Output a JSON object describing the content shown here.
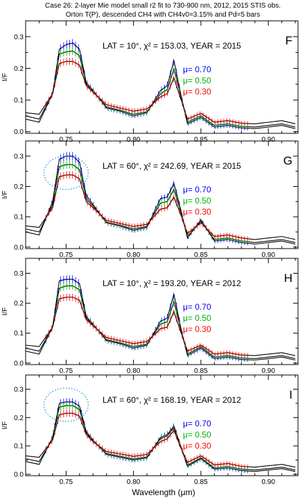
{
  "figure": {
    "title_lines": [
      "Case 26: 2-layer Mie model small r2 fit to 730-900 nm, 2012, 2015 STIS obs.",
      "Orton T(P), descended CH4 with CH4v0=3.15% and Pd=5 bars"
    ],
    "xlabel": "Wavelength (μm)",
    "colors": {
      "mu_070": "#0000ff",
      "mu_050": "#00b000",
      "mu_030": "#ff0000",
      "model": "#000000",
      "circle": "#2a9fd6"
    }
  },
  "chart_data": [
    {
      "type": "line",
      "panel_letter": "F",
      "annotation": "LAT = 10°, χ² = 153.03, YEAR = 2015",
      "ylabel": "I/F",
      "xlim": [
        0.72,
        0.922
      ],
      "ylim": [
        -0.005,
        0.35
      ],
      "x_ticks": [
        "0.75",
        "0.80",
        "0.85",
        "0.90"
      ],
      "y_ticks": [
        "0.0",
        "0.1",
        "0.2",
        "0.3"
      ],
      "legend": [
        "μ=  0.70",
        "μ=  0.50",
        "μ=  0.30"
      ],
      "legend_position": "right",
      "circle": false,
      "series": [
        {
          "name": "μ=  0.70",
          "color": "#0000ff",
          "x": [
            0.72,
            0.73,
            0.74,
            0.745,
            0.75,
            0.755,
            0.76,
            0.765,
            0.77,
            0.78,
            0.79,
            0.8,
            0.81,
            0.82,
            0.825,
            0.83,
            0.835,
            0.84,
            0.85,
            0.86,
            0.87,
            0.88,
            0.89,
            0.9,
            0.91,
            0.92
          ],
          "values": [
            0.04,
            0.03,
            0.12,
            0.26,
            0.275,
            0.28,
            0.26,
            0.155,
            0.13,
            0.075,
            0.065,
            0.05,
            0.06,
            0.13,
            0.145,
            0.225,
            0.12,
            0.025,
            0.045,
            0.015,
            0.02,
            0.012,
            0.01,
            0.015,
            0.02,
            0.01
          ]
        },
        {
          "name": "μ=  0.50",
          "color": "#00b000",
          "x": [
            0.72,
            0.73,
            0.74,
            0.745,
            0.75,
            0.755,
            0.76,
            0.765,
            0.77,
            0.78,
            0.79,
            0.8,
            0.81,
            0.82,
            0.825,
            0.83,
            0.835,
            0.84,
            0.85,
            0.86,
            0.87,
            0.88,
            0.89,
            0.9,
            0.91,
            0.92
          ],
          "values": [
            0.05,
            0.04,
            0.12,
            0.245,
            0.252,
            0.255,
            0.24,
            0.15,
            0.128,
            0.078,
            0.068,
            0.055,
            0.063,
            0.12,
            0.133,
            0.198,
            0.115,
            0.03,
            0.05,
            0.02,
            0.025,
            0.017,
            0.015,
            0.02,
            0.025,
            0.015
          ]
        },
        {
          "name": "μ=  0.30",
          "color": "#ff0000",
          "x": [
            0.72,
            0.73,
            0.74,
            0.745,
            0.75,
            0.755,
            0.76,
            0.765,
            0.77,
            0.78,
            0.79,
            0.8,
            0.81,
            0.82,
            0.825,
            0.83,
            0.835,
            0.84,
            0.85,
            0.86,
            0.87,
            0.88,
            0.89,
            0.9,
            0.91,
            0.92
          ],
          "values": [
            0.06,
            0.055,
            0.12,
            0.215,
            0.222,
            0.222,
            0.21,
            0.145,
            0.125,
            0.085,
            0.075,
            0.065,
            0.072,
            0.11,
            0.12,
            0.17,
            0.105,
            0.04,
            0.058,
            0.03,
            0.035,
            0.027,
            0.025,
            0.03,
            0.035,
            0.025
          ]
        }
      ]
    },
    {
      "type": "line",
      "panel_letter": "G",
      "annotation": "LAT = 60°, χ² = 242.69, YEAR = 2015",
      "ylabel": "I/F",
      "xlim": [
        0.72,
        0.922
      ],
      "ylim": [
        -0.005,
        0.35
      ],
      "x_ticks": [
        "0.75",
        "0.80",
        "0.85",
        "0.90"
      ],
      "y_ticks": [
        "0.0",
        "0.1",
        "0.2",
        "0.3"
      ],
      "legend": [
        "μ=  0.70",
        "μ=  0.50",
        "μ=  0.30"
      ],
      "legend_position": "right",
      "circle": true,
      "series": [
        {
          "name": "μ=  0.70",
          "color": "#0000ff",
          "x": [
            0.72,
            0.73,
            0.74,
            0.745,
            0.75,
            0.755,
            0.76,
            0.765,
            0.77,
            0.78,
            0.79,
            0.8,
            0.81,
            0.82,
            0.825,
            0.83,
            0.835,
            0.84,
            0.85,
            0.86,
            0.87,
            0.88,
            0.89,
            0.9,
            0.91,
            0.92
          ],
          "values": [
            0.05,
            0.04,
            0.15,
            0.29,
            0.3,
            0.3,
            0.28,
            0.17,
            0.14,
            0.08,
            0.07,
            0.055,
            0.065,
            0.16,
            0.165,
            0.21,
            0.125,
            0.03,
            0.09,
            0.02,
            0.025,
            0.015,
            0.01,
            0.015,
            0.02,
            0.01
          ]
        },
        {
          "name": "μ=  0.50",
          "color": "#00b000",
          "x": [
            0.72,
            0.73,
            0.74,
            0.745,
            0.75,
            0.755,
            0.76,
            0.765,
            0.77,
            0.78,
            0.79,
            0.8,
            0.81,
            0.82,
            0.825,
            0.83,
            0.835,
            0.84,
            0.85,
            0.86,
            0.87,
            0.88,
            0.89,
            0.9,
            0.91,
            0.92
          ],
          "values": [
            0.06,
            0.05,
            0.14,
            0.265,
            0.272,
            0.272,
            0.255,
            0.16,
            0.135,
            0.082,
            0.072,
            0.06,
            0.068,
            0.145,
            0.15,
            0.19,
            0.118,
            0.035,
            0.085,
            0.025,
            0.03,
            0.02,
            0.015,
            0.02,
            0.025,
            0.015
          ]
        },
        {
          "name": "μ=  0.30",
          "color": "#ff0000",
          "x": [
            0.72,
            0.73,
            0.74,
            0.745,
            0.75,
            0.755,
            0.76,
            0.765,
            0.77,
            0.78,
            0.79,
            0.8,
            0.81,
            0.82,
            0.825,
            0.83,
            0.835,
            0.84,
            0.85,
            0.86,
            0.87,
            0.88,
            0.89,
            0.9,
            0.91,
            0.92
          ],
          "values": [
            0.07,
            0.065,
            0.13,
            0.232,
            0.238,
            0.238,
            0.225,
            0.15,
            0.13,
            0.088,
            0.078,
            0.068,
            0.075,
            0.125,
            0.13,
            0.165,
            0.108,
            0.045,
            0.08,
            0.035,
            0.04,
            0.03,
            0.025,
            0.03,
            0.035,
            0.025
          ]
        }
      ]
    },
    {
      "type": "line",
      "panel_letter": "H",
      "annotation": "LAT = 10°, χ² = 193.20, YEAR = 2012",
      "ylabel": "I/F",
      "xlim": [
        0.72,
        0.922
      ],
      "ylim": [
        -0.005,
        0.35
      ],
      "x_ticks": [
        "0.75",
        "0.80",
        "0.85",
        "0.90"
      ],
      "y_ticks": [
        "0.0",
        "0.1",
        "0.2",
        "0.3"
      ],
      "legend": [
        "μ=  0.70",
        "μ=  0.50",
        "μ=  0.30"
      ],
      "legend_position": "right",
      "circle": false,
      "series": [
        {
          "name": "μ=  0.70",
          "color": "#0000ff",
          "x": [
            0.72,
            0.73,
            0.74,
            0.745,
            0.75,
            0.755,
            0.76,
            0.765,
            0.77,
            0.78,
            0.79,
            0.8,
            0.81,
            0.82,
            0.825,
            0.83,
            0.835,
            0.84,
            0.85,
            0.86,
            0.87,
            0.88,
            0.89,
            0.9,
            0.91,
            0.92
          ],
          "values": [
            0.04,
            0.03,
            0.12,
            0.275,
            0.28,
            0.28,
            0.265,
            0.155,
            0.13,
            0.075,
            0.065,
            0.05,
            0.06,
            0.14,
            0.15,
            0.23,
            0.12,
            0.025,
            0.05,
            0.015,
            0.02,
            0.012,
            0.01,
            0.015,
            0.02,
            0.01
          ]
        },
        {
          "name": "μ=  0.50",
          "color": "#00b000",
          "x": [
            0.72,
            0.73,
            0.74,
            0.745,
            0.75,
            0.755,
            0.76,
            0.765,
            0.77,
            0.78,
            0.79,
            0.8,
            0.81,
            0.82,
            0.825,
            0.83,
            0.835,
            0.84,
            0.85,
            0.86,
            0.87,
            0.88,
            0.89,
            0.9,
            0.91,
            0.92
          ],
          "values": [
            0.05,
            0.04,
            0.12,
            0.25,
            0.258,
            0.258,
            0.245,
            0.15,
            0.128,
            0.078,
            0.068,
            0.055,
            0.063,
            0.13,
            0.138,
            0.205,
            0.115,
            0.03,
            0.055,
            0.02,
            0.025,
            0.017,
            0.015,
            0.02,
            0.025,
            0.015
          ]
        },
        {
          "name": "μ=  0.30",
          "color": "#ff0000",
          "x": [
            0.72,
            0.73,
            0.74,
            0.745,
            0.75,
            0.755,
            0.76,
            0.765,
            0.77,
            0.78,
            0.79,
            0.8,
            0.81,
            0.82,
            0.825,
            0.83,
            0.835,
            0.84,
            0.85,
            0.86,
            0.87,
            0.88,
            0.89,
            0.9,
            0.91,
            0.92
          ],
          "values": [
            0.06,
            0.055,
            0.12,
            0.215,
            0.22,
            0.22,
            0.21,
            0.145,
            0.125,
            0.085,
            0.075,
            0.065,
            0.072,
            0.115,
            0.12,
            0.172,
            0.105,
            0.04,
            0.06,
            0.03,
            0.035,
            0.027,
            0.025,
            0.03,
            0.035,
            0.025
          ]
        }
      ]
    },
    {
      "type": "line",
      "panel_letter": "I",
      "annotation": "LAT = 60°, χ² = 168.19, YEAR = 2012",
      "ylabel": "I/F",
      "xlim": [
        0.72,
        0.922
      ],
      "ylim": [
        -0.005,
        0.35
      ],
      "x_ticks": [
        "0.75",
        "0.80",
        "0.85",
        "0.90"
      ],
      "y_ticks": [
        "0.0",
        "0.1",
        "0.2",
        "0.3"
      ],
      "legend": [
        "μ=  0.70",
        "μ=  0.50",
        "μ=  0.30"
      ],
      "legend_position": "right",
      "circle": true,
      "series": [
        {
          "name": "μ=  0.70",
          "color": "#0000ff",
          "x": [
            0.72,
            0.73,
            0.74,
            0.745,
            0.75,
            0.755,
            0.76,
            0.765,
            0.77,
            0.78,
            0.79,
            0.8,
            0.81,
            0.82,
            0.825,
            0.83,
            0.835,
            0.84,
            0.85,
            0.86,
            0.87,
            0.88,
            0.89,
            0.9,
            0.91,
            0.92
          ],
          "values": [
            0.045,
            0.035,
            0.13,
            0.25,
            0.255,
            0.255,
            0.24,
            0.15,
            0.12,
            0.07,
            0.06,
            0.05,
            0.058,
            0.13,
            0.14,
            0.17,
            0.1,
            0.028,
            0.055,
            0.018,
            0.022,
            0.013,
            0.01,
            0.015,
            0.02,
            0.01
          ]
        },
        {
          "name": "μ=  0.50",
          "color": "#00b000",
          "x": [
            0.72,
            0.73,
            0.74,
            0.745,
            0.75,
            0.755,
            0.76,
            0.765,
            0.77,
            0.78,
            0.79,
            0.8,
            0.81,
            0.82,
            0.825,
            0.83,
            0.835,
            0.84,
            0.85,
            0.86,
            0.87,
            0.88,
            0.89,
            0.9,
            0.91,
            0.92
          ],
          "values": [
            0.055,
            0.045,
            0.125,
            0.237,
            0.242,
            0.242,
            0.228,
            0.145,
            0.118,
            0.073,
            0.063,
            0.054,
            0.061,
            0.125,
            0.135,
            0.165,
            0.098,
            0.032,
            0.058,
            0.022,
            0.027,
            0.018,
            0.015,
            0.02,
            0.025,
            0.015
          ]
        },
        {
          "name": "μ=  0.30",
          "color": "#ff0000",
          "x": [
            0.72,
            0.73,
            0.74,
            0.745,
            0.75,
            0.755,
            0.76,
            0.765,
            0.77,
            0.78,
            0.79,
            0.8,
            0.81,
            0.82,
            0.825,
            0.83,
            0.835,
            0.84,
            0.85,
            0.86,
            0.87,
            0.88,
            0.89,
            0.9,
            0.91,
            0.92
          ],
          "values": [
            0.065,
            0.06,
            0.12,
            0.21,
            0.215,
            0.215,
            0.205,
            0.14,
            0.115,
            0.08,
            0.072,
            0.063,
            0.07,
            0.115,
            0.125,
            0.155,
            0.095,
            0.042,
            0.065,
            0.033,
            0.038,
            0.028,
            0.025,
            0.03,
            0.035,
            0.025
          ]
        }
      ]
    }
  ]
}
